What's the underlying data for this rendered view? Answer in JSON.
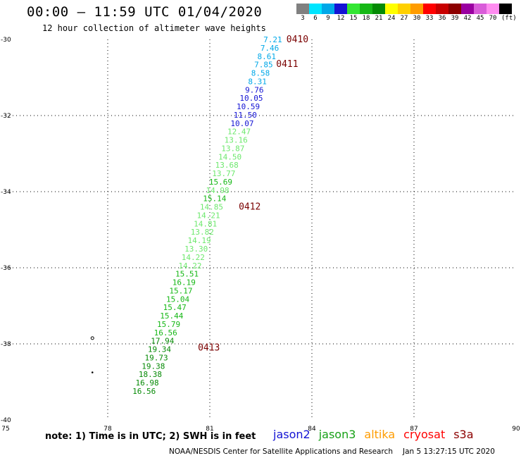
{
  "header": {
    "title": "00:00 — 11:59 UTC 01/04/2020",
    "subtitle": "12 hour collection of altimeter wave heights"
  },
  "legend": {
    "unit": "(ft)",
    "items": [
      {
        "label": "3",
        "color": "#808080"
      },
      {
        "label": "6",
        "color": "#00e5ff"
      },
      {
        "label": "9",
        "color": "#00a8e8"
      },
      {
        "label": "12",
        "color": "#1414d4"
      },
      {
        "label": "15",
        "color": "#33e633"
      },
      {
        "label": "18",
        "color": "#16b816"
      },
      {
        "label": "21",
        "color": "#058a05"
      },
      {
        "label": "24",
        "color": "#ffff00"
      },
      {
        "label": "27",
        "color": "#ffd000"
      },
      {
        "label": "30",
        "color": "#ff9c00"
      },
      {
        "label": "33",
        "color": "#ff0000"
      },
      {
        "label": "36",
        "color": "#c80000"
      },
      {
        "label": "39",
        "color": "#8c0000"
      },
      {
        "label": "42",
        "color": "#9a00a0"
      },
      {
        "label": "45",
        "color": "#d95cd9"
      },
      {
        "label": "70",
        "color": "#ff8cf0"
      },
      {
        "label": "",
        "color": "#000000"
      }
    ]
  },
  "chart_data": {
    "type": "scatter",
    "xlim": [
      75,
      90
    ],
    "ylim": [
      -40,
      -30
    ],
    "x_ticks": [
      {
        "value": 75,
        "label": "75"
      },
      {
        "value": 78,
        "label": "78"
      },
      {
        "value": 81,
        "label": "81"
      },
      {
        "value": 84,
        "label": "84"
      },
      {
        "value": 87,
        "label": "87"
      },
      {
        "value": 90,
        "label": "90"
      }
    ],
    "y_ticks": [
      {
        "value": -30,
        "label": "-30"
      },
      {
        "value": -32,
        "label": "-32"
      },
      {
        "value": -34,
        "label": "-34"
      },
      {
        "value": -36,
        "label": "-36"
      },
      {
        "value": -38,
        "label": "-38"
      },
      {
        "value": -40,
        "label": "-40"
      }
    ],
    "grid": true,
    "points": [
      {
        "lon": 82.85,
        "lat": -30.0,
        "label": "7.21",
        "color": "#00a8e8"
      },
      {
        "lon": 82.76,
        "lat": -30.22,
        "label": "7.46",
        "color": "#00a8e8"
      },
      {
        "lon": 82.67,
        "lat": -30.44,
        "label": "8.61",
        "color": "#00a8e8"
      },
      {
        "lon": 82.58,
        "lat": -30.66,
        "label": "7.85",
        "color": "#00a8e8"
      },
      {
        "lon": 82.49,
        "lat": -30.88,
        "label": "8.58",
        "color": "#00a8e8"
      },
      {
        "lon": 82.4,
        "lat": -31.1,
        "label": "8.31",
        "color": "#00a8e8"
      },
      {
        "lon": 82.31,
        "lat": -31.32,
        "label": "9.76",
        "color": "#1414d4"
      },
      {
        "lon": 82.22,
        "lat": -31.54,
        "label": "10.05",
        "color": "#1414d4"
      },
      {
        "lon": 82.13,
        "lat": -31.76,
        "label": "10.59",
        "color": "#1414d4"
      },
      {
        "lon": 82.04,
        "lat": -31.98,
        "label": "11.50",
        "color": "#1414d4"
      },
      {
        "lon": 81.95,
        "lat": -32.2,
        "label": "10.07",
        "color": "#1414d4"
      },
      {
        "lon": 81.86,
        "lat": -32.42,
        "label": "12.47",
        "color": "#6ee86e"
      },
      {
        "lon": 81.77,
        "lat": -32.64,
        "label": "13.16",
        "color": "#6ee86e"
      },
      {
        "lon": 81.68,
        "lat": -32.86,
        "label": "13.87",
        "color": "#6ee86e"
      },
      {
        "lon": 81.59,
        "lat": -33.08,
        "label": "14.50",
        "color": "#6ee86e"
      },
      {
        "lon": 81.5,
        "lat": -33.3,
        "label": "13.68",
        "color": "#6ee86e"
      },
      {
        "lon": 81.41,
        "lat": -33.52,
        "label": "13.77",
        "color": "#6ee86e"
      },
      {
        "lon": 81.32,
        "lat": -33.74,
        "label": "15.69",
        "color": "#16b816"
      },
      {
        "lon": 81.23,
        "lat": -33.96,
        "label": "14.98",
        "color": "#6ee86e"
      },
      {
        "lon": 81.14,
        "lat": -34.18,
        "label": "15.14",
        "color": "#16b816"
      },
      {
        "lon": 81.05,
        "lat": -34.4,
        "label": "14.85",
        "color": "#6ee86e"
      },
      {
        "lon": 80.96,
        "lat": -34.62,
        "label": "14.21",
        "color": "#6ee86e"
      },
      {
        "lon": 80.87,
        "lat": -34.84,
        "label": "14.81",
        "color": "#6ee86e"
      },
      {
        "lon": 80.78,
        "lat": -35.06,
        "label": "13.82",
        "color": "#6ee86e"
      },
      {
        "lon": 80.69,
        "lat": -35.28,
        "label": "14.19",
        "color": "#6ee86e"
      },
      {
        "lon": 80.6,
        "lat": -35.5,
        "label": "13.30",
        "color": "#6ee86e"
      },
      {
        "lon": 80.51,
        "lat": -35.72,
        "label": "14.22",
        "color": "#6ee86e"
      },
      {
        "lon": 80.42,
        "lat": -35.94,
        "label": "14.22",
        "color": "#6ee86e"
      },
      {
        "lon": 80.33,
        "lat": -36.16,
        "label": "15.51",
        "color": "#16b816"
      },
      {
        "lon": 80.24,
        "lat": -36.38,
        "label": "16.19",
        "color": "#16b816"
      },
      {
        "lon": 80.15,
        "lat": -36.6,
        "label": "15.17",
        "color": "#16b816"
      },
      {
        "lon": 80.06,
        "lat": -36.82,
        "label": "15.04",
        "color": "#16b816"
      },
      {
        "lon": 79.97,
        "lat": -37.04,
        "label": "15.47",
        "color": "#16b816"
      },
      {
        "lon": 79.88,
        "lat": -37.26,
        "label": "15.44",
        "color": "#16b816"
      },
      {
        "lon": 79.79,
        "lat": -37.48,
        "label": "15.79",
        "color": "#16b816"
      },
      {
        "lon": 79.7,
        "lat": -37.7,
        "label": "16.56",
        "color": "#16b816"
      },
      {
        "lon": 79.61,
        "lat": -37.92,
        "label": "17.94",
        "color": "#058a05"
      },
      {
        "lon": 79.52,
        "lat": -38.14,
        "label": "19.34",
        "color": "#058a05"
      },
      {
        "lon": 79.43,
        "lat": -38.36,
        "label": "19.73",
        "color": "#058a05"
      },
      {
        "lon": 79.34,
        "lat": -38.58,
        "label": "19.38",
        "color": "#058a05"
      },
      {
        "lon": 79.25,
        "lat": -38.8,
        "label": "18.38",
        "color": "#058a05"
      },
      {
        "lon": 79.16,
        "lat": -39.02,
        "label": "16.98",
        "color": "#058a05"
      },
      {
        "lon": 79.07,
        "lat": -39.24,
        "label": "16.56",
        "color": "#058a05"
      }
    ],
    "time_labels": [
      {
        "lon": 83.25,
        "lat": -30.0,
        "label": "0410",
        "color": "#7a0000"
      },
      {
        "lon": 82.95,
        "lat": -30.65,
        "label": "0411",
        "color": "#7a0000"
      },
      {
        "lon": 81.85,
        "lat": -34.4,
        "label": "0412",
        "color": "#7a0000"
      },
      {
        "lon": 80.65,
        "lat": -38.1,
        "label": "0413",
        "color": "#7a0000"
      }
    ],
    "island_markers": [
      {
        "lon": 77.55,
        "lat": -37.85,
        "shape": "ring"
      },
      {
        "lon": 77.55,
        "lat": -38.75,
        "shape": "dot"
      }
    ]
  },
  "footer": {
    "note": "note: 1) Time is in UTC; 2) SWH is in feet",
    "missions": [
      {
        "name": "jason2",
        "color": "#1414d4"
      },
      {
        "name": "jason3",
        "color": "#16a016"
      },
      {
        "name": "altika",
        "color": "#ff9c00"
      },
      {
        "name": "cryosat",
        "color": "#ff0000"
      },
      {
        "name": "s3a",
        "color": "#8c0000"
      }
    ],
    "credit": "NOAA/NESDIS Center for Satellite Applications and Research",
    "date": "Jan  5 13:27:15 UTC 2020"
  }
}
